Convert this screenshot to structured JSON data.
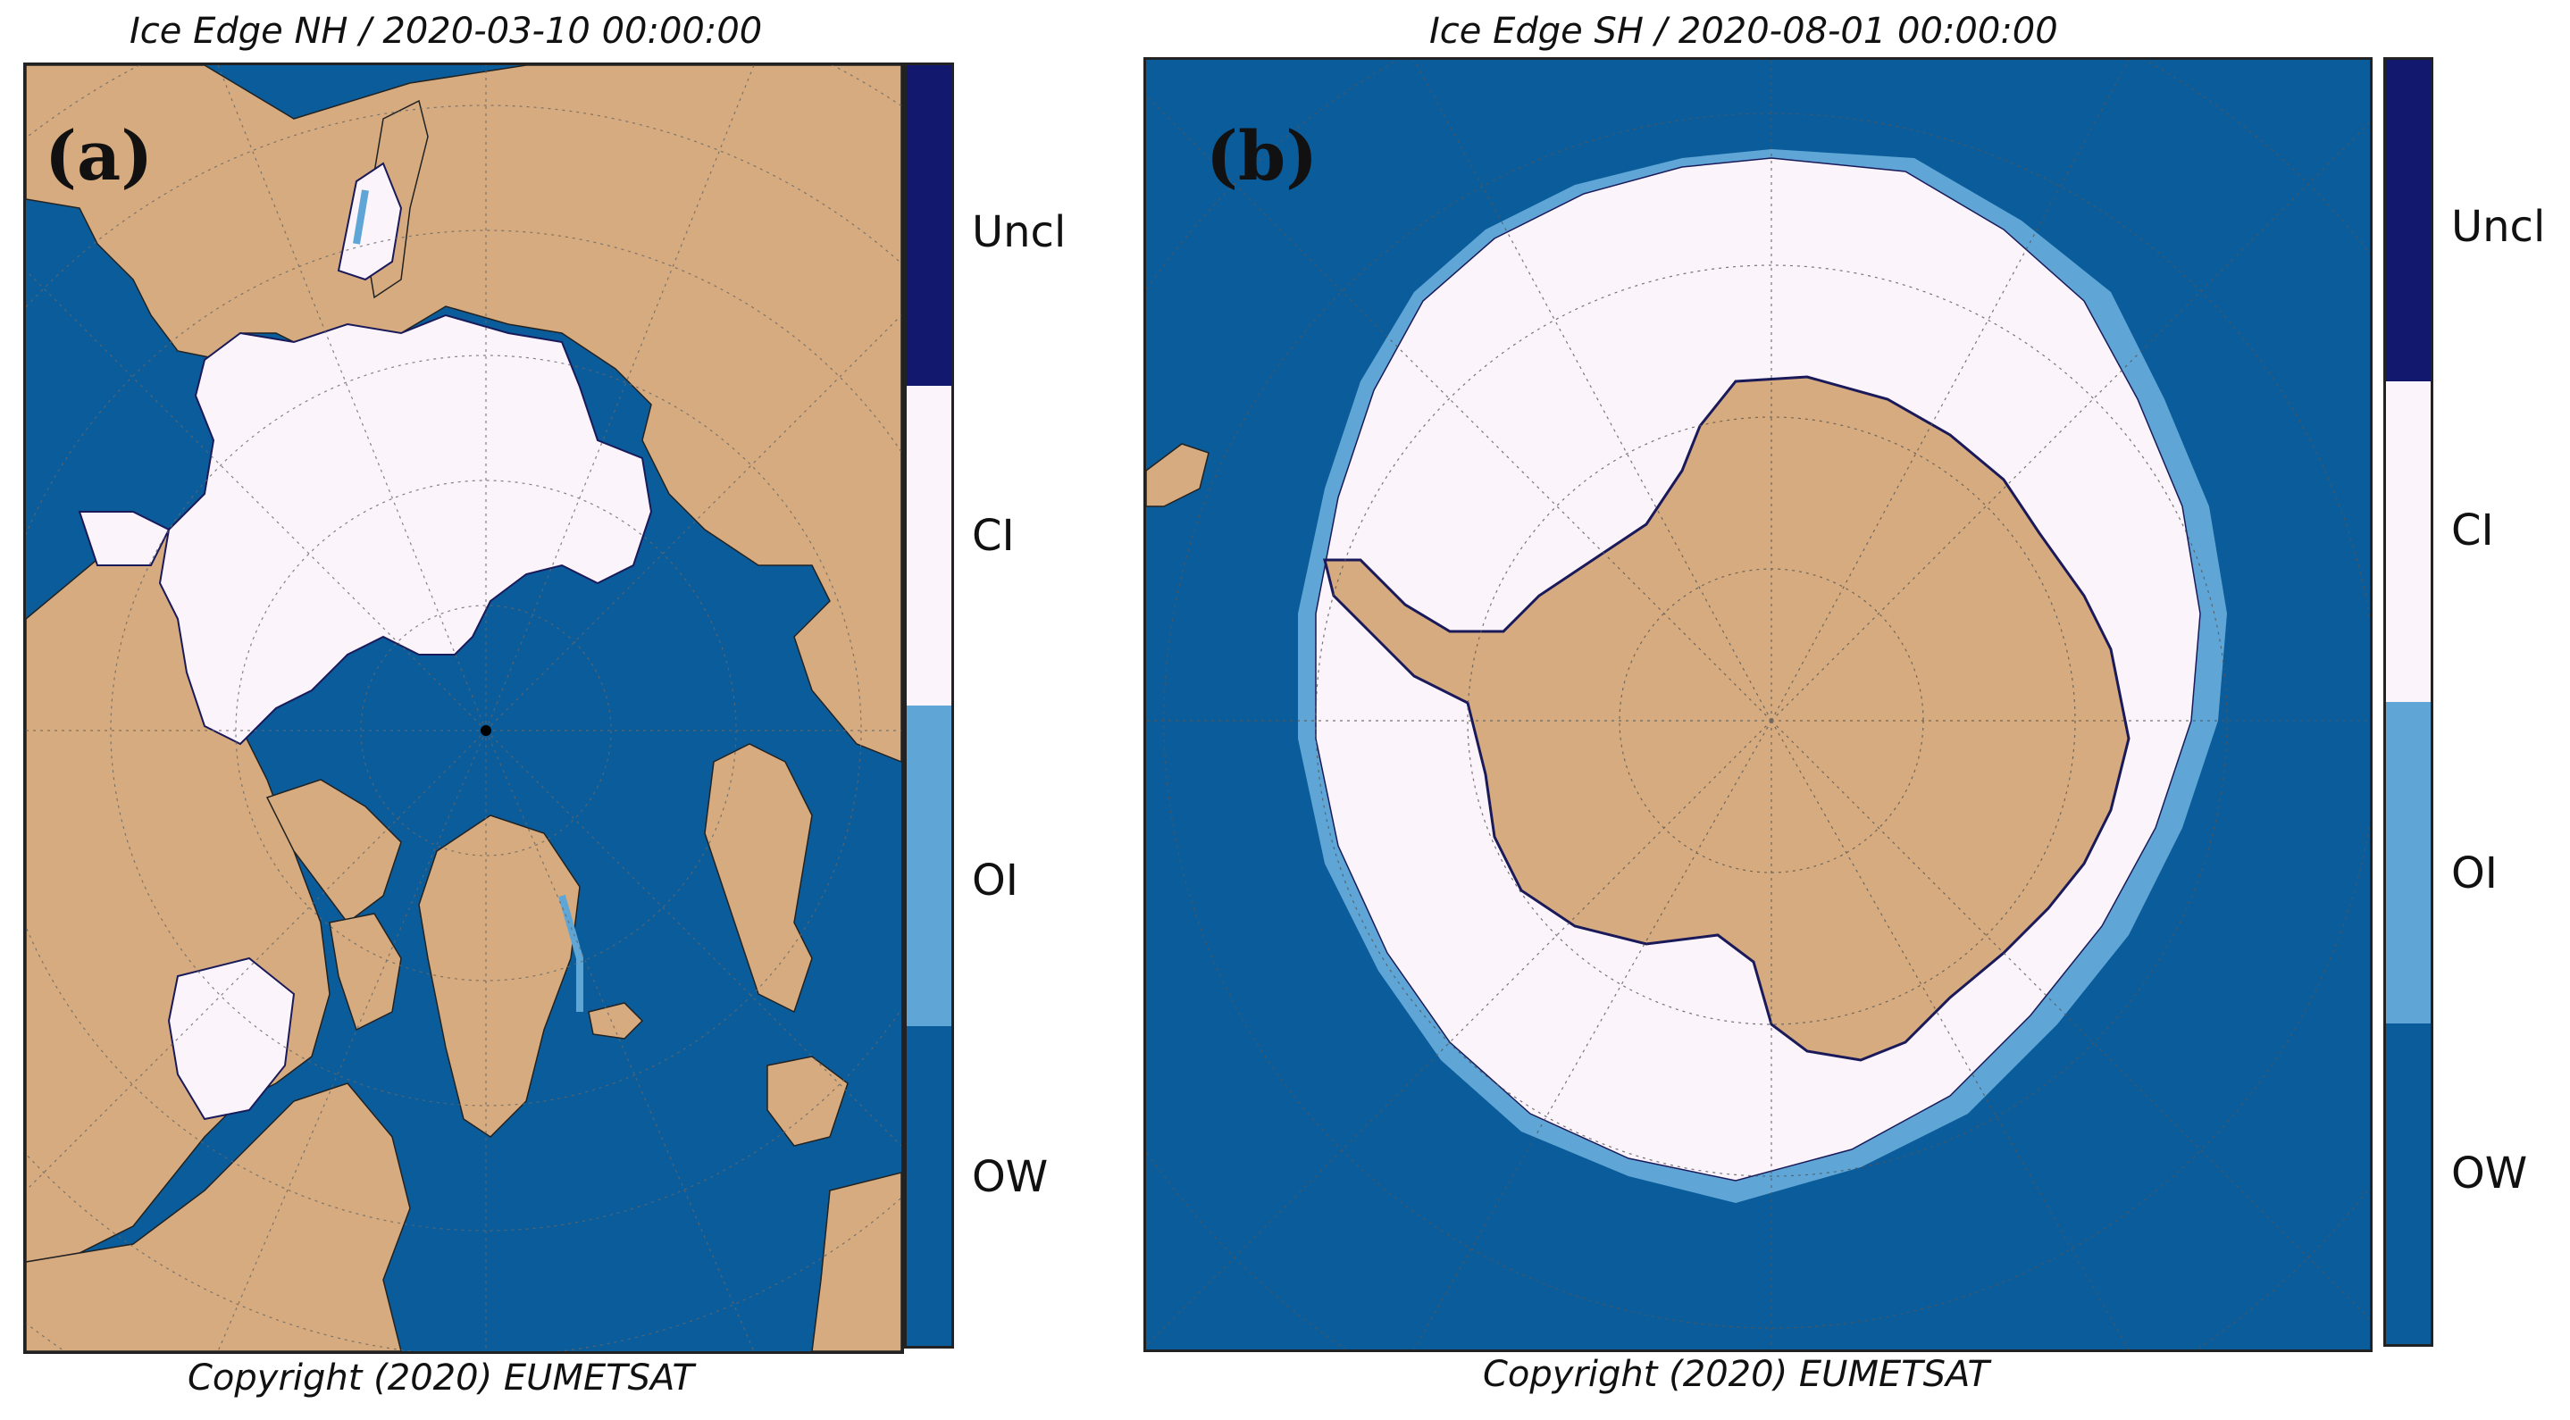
{
  "panels": [
    {
      "label": "(a)",
      "title": "Ice Edge NH / 2020-03-10 00:00:00",
      "copyright": "Copyright (2020)  EUMETSAT"
    },
    {
      "label": "(b)",
      "title": "Ice Edge SH / 2020-08-01 00:00:00",
      "copyright": "Copyright (2020)  EUMETSAT"
    }
  ],
  "legend": {
    "entries": [
      {
        "label": "Uncl",
        "color": "#12186e"
      },
      {
        "label": "CI",
        "color": "#fbf4fb"
      },
      {
        "label": "OI",
        "color": "#5fa6d6"
      },
      {
        "label": "OW",
        "color": "#0b5c9b"
      }
    ]
  },
  "colors": {
    "ocean": "#0b5c9b",
    "land": "#d6ab7f",
    "closed_ice": "#fbf4fb",
    "open_ice": "#5fa6d6",
    "unclassified": "#12186e"
  }
}
